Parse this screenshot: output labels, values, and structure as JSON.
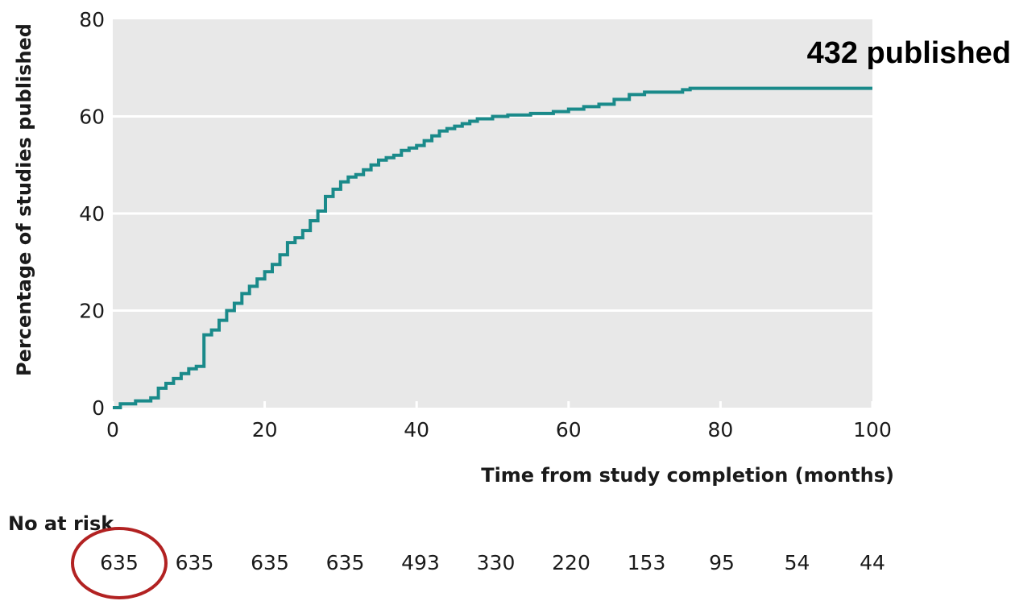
{
  "chart_data": {
    "type": "line",
    "step": true,
    "ylabel": "Percentage of studies published",
    "xlabel": "Time from study completion (months)",
    "xlim": [
      0,
      100
    ],
    "ylim": [
      0,
      80
    ],
    "x_ticks": [
      0,
      20,
      40,
      60,
      80,
      100
    ],
    "y_ticks": [
      0,
      20,
      40,
      60,
      80
    ],
    "grid": "horizontal",
    "background_color": "#e8e8e8",
    "line_color": "#1a8a8a",
    "annotation": "432 published",
    "series": [
      {
        "x": [
          0,
          1,
          3,
          5,
          6,
          7,
          8,
          9,
          10,
          11,
          12,
          12,
          13,
          14,
          15,
          16,
          17,
          18,
          19,
          20,
          21,
          22,
          23,
          24,
          25,
          26,
          27,
          28,
          29,
          30,
          31,
          32,
          33,
          34,
          35,
          36,
          37,
          38,
          39,
          40,
          41,
          42,
          43,
          44,
          45,
          46,
          47,
          48,
          50,
          52,
          55,
          58,
          60,
          62,
          64,
          66,
          68,
          70,
          75,
          76,
          100
        ],
        "y": [
          0,
          0.8,
          1.4,
          2,
          4,
          5,
          6,
          7,
          8,
          8.5,
          9.5,
          15,
          16,
          18,
          20,
          21.5,
          23.5,
          25,
          26.5,
          28,
          29.5,
          31.5,
          34,
          35,
          36.5,
          38.5,
          40.5,
          43.5,
          45,
          46.5,
          47.5,
          48,
          49,
          50,
          51,
          51.5,
          52,
          53,
          53.5,
          54,
          55,
          56,
          57,
          57.5,
          58,
          58.5,
          59,
          59.5,
          60,
          60.3,
          60.6,
          61,
          61.5,
          62,
          62.5,
          63.5,
          64.5,
          65,
          65.5,
          65.8,
          65.8
        ]
      }
    ]
  },
  "risk_table": {
    "title": "No at risk",
    "values": [
      "635",
      "635",
      "635",
      "635",
      "493",
      "330",
      "220",
      "153",
      "95",
      "54",
      "44"
    ],
    "highlight_color": "#b22222"
  }
}
